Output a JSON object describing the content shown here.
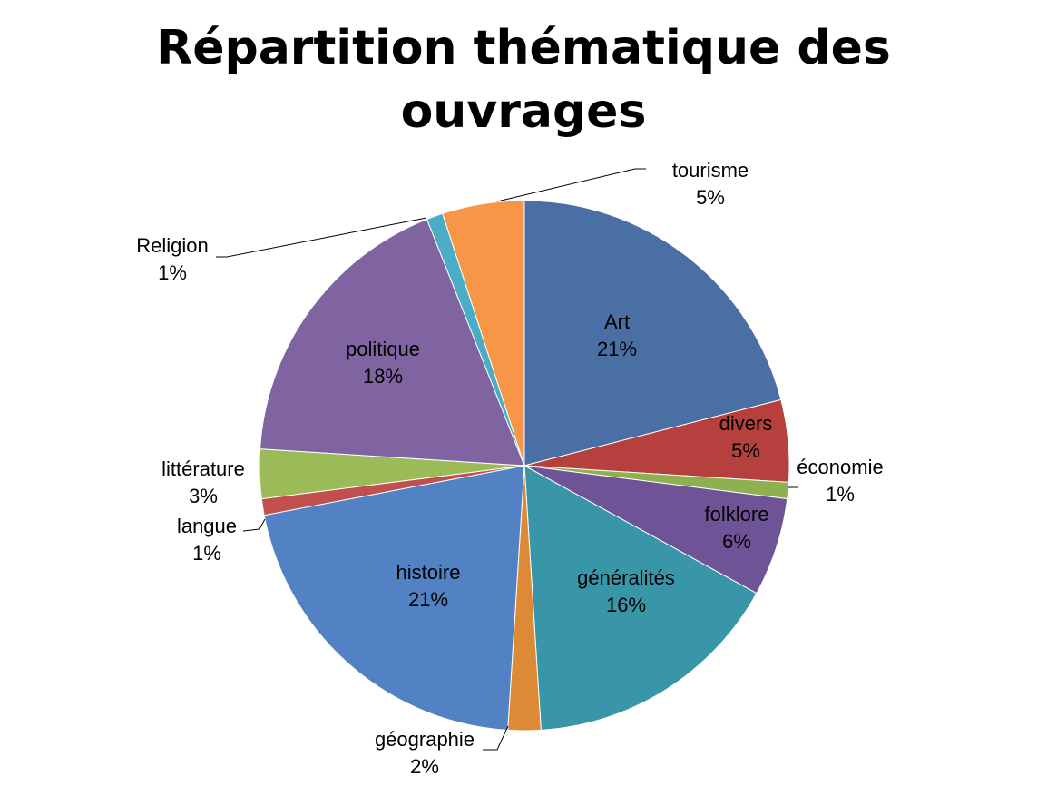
{
  "chart_data": {
    "type": "pie",
    "title": "Répartition thématique des ouvrages",
    "title_lines": [
      "Répartition thématique des",
      "ouvrages"
    ],
    "slices": [
      {
        "name": "Art",
        "value": 21,
        "label": "21%",
        "color": "#4a6fa5"
      },
      {
        "name": "divers",
        "value": 5,
        "label": "5%",
        "color": "#b5403e"
      },
      {
        "name": "économie",
        "value": 1,
        "label": "1%",
        "color": "#8fb04f"
      },
      {
        "name": "folklore",
        "value": 6,
        "label": "6%",
        "color": "#6e5396"
      },
      {
        "name": "généralités",
        "value": 16,
        "label": "16%",
        "color": "#3996a9"
      },
      {
        "name": "géographie",
        "value": 2,
        "label": "2%",
        "color": "#dd8a36"
      },
      {
        "name": "histoire",
        "value": 21,
        "label": "21%",
        "color": "#5382c4"
      },
      {
        "name": "langue",
        "value": 1,
        "label": "1%",
        "color": "#c0504d"
      },
      {
        "name": "littérature",
        "value": 3,
        "label": "3%",
        "color": "#9bbb59"
      },
      {
        "name": "politique",
        "value": 18,
        "label": "18%",
        "color": "#8064a2"
      },
      {
        "name": "Religion",
        "value": 1,
        "label": "1%",
        "color": "#4bacc6"
      },
      {
        "name": "tourisme",
        "value": 5,
        "label": "5%",
        "color": "#f79646"
      }
    ],
    "legend": "none",
    "label_position": "inside or outside with leader lines"
  }
}
